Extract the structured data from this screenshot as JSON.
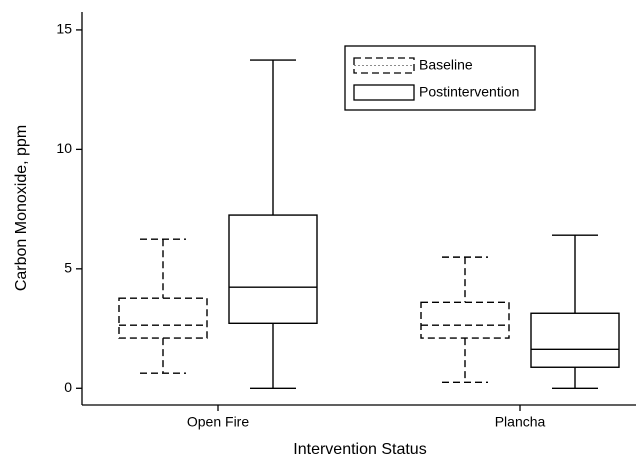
{
  "chart_data": {
    "type": "box",
    "x_label": "Intervention Status",
    "y_label": "Carbon Monoxide, ppm",
    "categories": [
      "Open Fire",
      "Plancha"
    ],
    "series": [
      {
        "name": "Baseline",
        "color": "#000000",
        "line_style": "dashed",
        "values": [
          {
            "min": 0.63,
            "q1": 2.1,
            "median": 2.64,
            "q3": 3.77,
            "max": 6.24
          },
          {
            "min": 0.25,
            "q1": 2.1,
            "median": 2.64,
            "q3": 3.6,
            "max": 5.49
          }
        ]
      },
      {
        "name": "Postintervention",
        "color": "#000000",
        "line_style": "solid",
        "values": [
          {
            "min": 0,
            "q1": 2.72,
            "median": 4.23,
            "q3": 7.25,
            "max": 13.74
          },
          {
            "min": 0,
            "q1": 0.88,
            "median": 1.63,
            "q3": 3.14,
            "max": 6.41
          }
        ]
      }
    ],
    "ylim": [
      -0.7,
      15.75
    ],
    "yticks": [
      0,
      5,
      10,
      15
    ],
    "legend": "upper right"
  }
}
